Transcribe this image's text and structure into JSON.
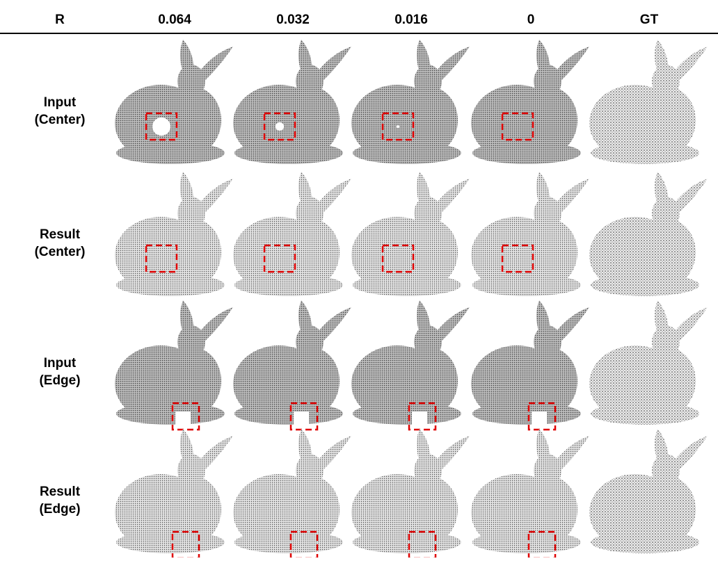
{
  "header": [
    "R",
    "0.064",
    "0.032",
    "0.016",
    "0",
    "GT"
  ],
  "rows": [
    {
      "label": [
        "Input",
        "(Center)"
      ]
    },
    {
      "label": [
        "Result",
        "(Center)"
      ]
    },
    {
      "label": [
        "Input",
        "(Edge)"
      ]
    },
    {
      "label": [
        "Result",
        "(Edge)"
      ]
    }
  ]
}
